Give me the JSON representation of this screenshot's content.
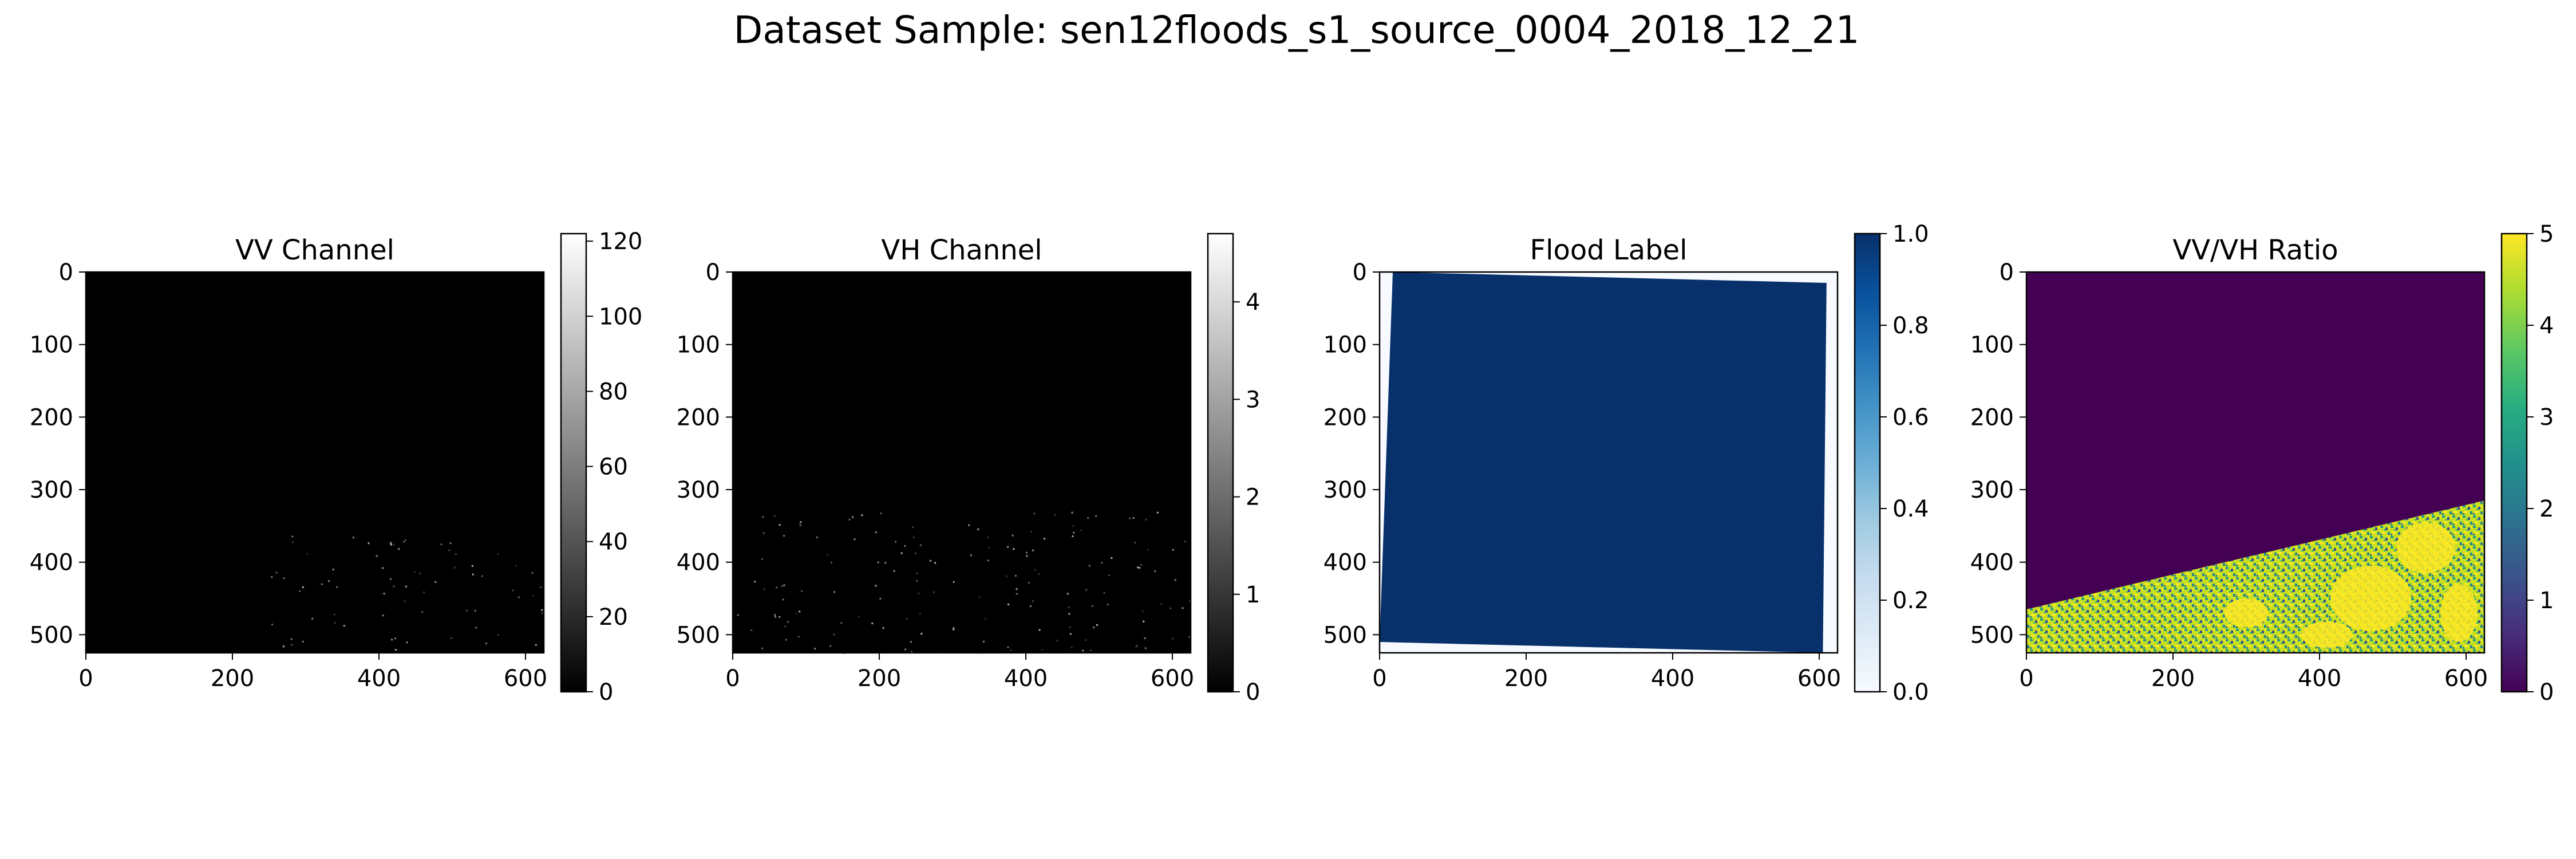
{
  "figure": {
    "title": "Dataset Sample: sen12floods_s1_source_0004_2018_12_21"
  },
  "chart_data": [
    {
      "type": "heatmap",
      "title": "VV Channel",
      "colormap": "gray",
      "xlim": [
        0,
        625
      ],
      "ylim": [
        525,
        0
      ],
      "xticks": [
        0,
        200,
        400,
        600
      ],
      "yticks": [
        0,
        100,
        200,
        300,
        400,
        500
      ],
      "colorbar": {
        "range": [
          0,
          122
        ],
        "ticks": [
          0,
          20,
          40,
          60,
          80,
          100,
          120
        ]
      },
      "content": "near-black image with sparse bright speckles in lower-right region"
    },
    {
      "type": "heatmap",
      "title": "VH Channel",
      "colormap": "gray",
      "xlim": [
        0,
        625
      ],
      "ylim": [
        525,
        0
      ],
      "xticks": [
        0,
        200,
        400,
        600
      ],
      "yticks": [
        0,
        100,
        200,
        300,
        400,
        500
      ],
      "colorbar": {
        "range": [
          0,
          4.7
        ],
        "ticks": [
          0,
          1,
          2,
          3,
          4
        ]
      },
      "content": "near-black image with faint speckles in lower half"
    },
    {
      "type": "heatmap",
      "title": "Flood Label",
      "colormap": "Blues",
      "xlim": [
        0,
        625
      ],
      "ylim": [
        525,
        0
      ],
      "xticks": [
        0,
        200,
        400,
        600
      ],
      "yticks": [
        0,
        100,
        200,
        300,
        400,
        500
      ],
      "colorbar": {
        "range": [
          0.0,
          1.0
        ],
        "ticks": [
          "0.0",
          "0.2",
          "0.4",
          "0.6",
          "0.8",
          "1.0"
        ]
      },
      "region_value": 1.0,
      "region_corners": [
        [
          18,
          0
        ],
        [
          610,
          15
        ],
        [
          605,
          525
        ],
        [
          0,
          510
        ]
      ],
      "background_value": 0.0
    },
    {
      "type": "heatmap",
      "title": "VV/VH Ratio",
      "colormap": "viridis",
      "xlim": [
        0,
        625
      ],
      "ylim": [
        525,
        0
      ],
      "xticks": [
        0,
        200,
        400,
        600
      ],
      "yticks": [
        0,
        100,
        200,
        300,
        400,
        500
      ],
      "colorbar": {
        "range": [
          0,
          5
        ],
        "ticks": [
          0,
          1,
          2,
          3,
          4,
          5
        ]
      },
      "upper_region_value": 0,
      "boundary_line": [
        [
          0,
          465
        ],
        [
          625,
          315
        ]
      ],
      "lower_region": "mixed values 1–5, mostly yellow/green speckle"
    }
  ],
  "colors": {
    "flood_blue": "#08306b",
    "viridis_low": "#440154",
    "viridis_high": "#fde725"
  }
}
